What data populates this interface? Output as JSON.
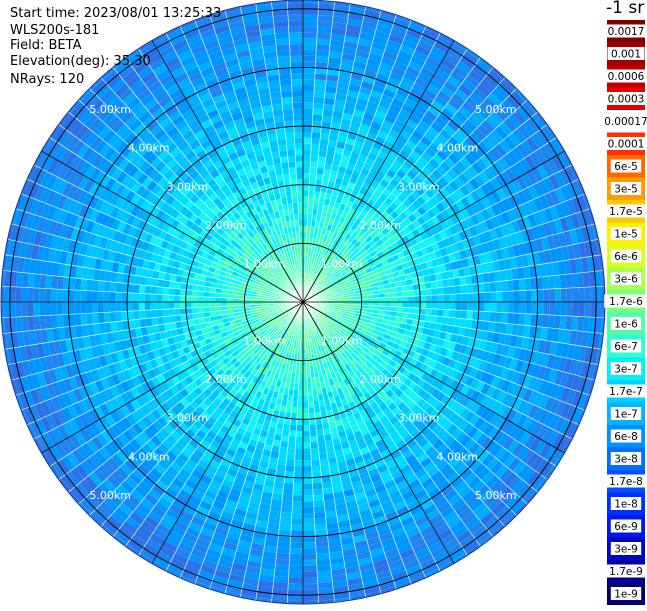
{
  "info": {
    "start_time": "Start time: 2023/08/01 13:25:33",
    "instrument": "WLS200s-181",
    "field": "Field: BETA",
    "elevation": "Elevation(deg): 35.30",
    "nrays": "NRays: 120"
  },
  "colorbar": {
    "title": "-1 sr",
    "levels": [
      "0.0017",
      "0.001",
      "0.0006",
      "0.0003",
      "0.00017",
      "0.0001",
      "6e-5",
      "3e-5",
      "1.7e-5",
      "1e-5",
      "6e-6",
      "3e-6",
      "1.7e-6",
      "1e-6",
      "6e-7",
      "3e-7",
      "1.7e-7",
      "1e-7",
      "6e-8",
      "3e-8",
      "1.7e-8",
      "1e-8",
      "6e-9",
      "3e-9",
      "1.7e-9",
      "1e-9"
    ],
    "colors": [
      "#7f0000",
      "#a00000",
      "#c00000",
      "#e00000",
      "#ffffff",
      "#ff3000",
      "#ff6a00",
      "#ff9a00",
      "#ffc800",
      "#ffee00",
      "#d8ff1f",
      "#a8ff4f",
      "#78ff7f",
      "#4fffa8",
      "#2affcf",
      "#00f0ff",
      "#00d0ff",
      "#00b4ff",
      "#0090ff",
      "#0070ff",
      "#0050ff",
      "#0030ff",
      "#0018e8",
      "#0008c8",
      "#00009e",
      "#00006e"
    ]
  },
  "chart_data": {
    "type": "heatmap",
    "projection": "polar (PPI scan)",
    "nrays": 120,
    "range_rings_km": [
      1.0,
      2.0,
      3.0,
      4.0,
      5.0
    ],
    "range_ring_labels": [
      "1.00km",
      "2.00km",
      "3.00km",
      "4.00km",
      "5.00km"
    ],
    "max_range_km": 5.0,
    "field": "BETA",
    "color_scale": "log",
    "value_range": [
      1e-09,
      0.0017
    ],
    "typical_values": {
      "near_center": "1.7e-6",
      "mid_range": "1.7e-7",
      "far_range": "3e-8"
    },
    "grid": true
  }
}
